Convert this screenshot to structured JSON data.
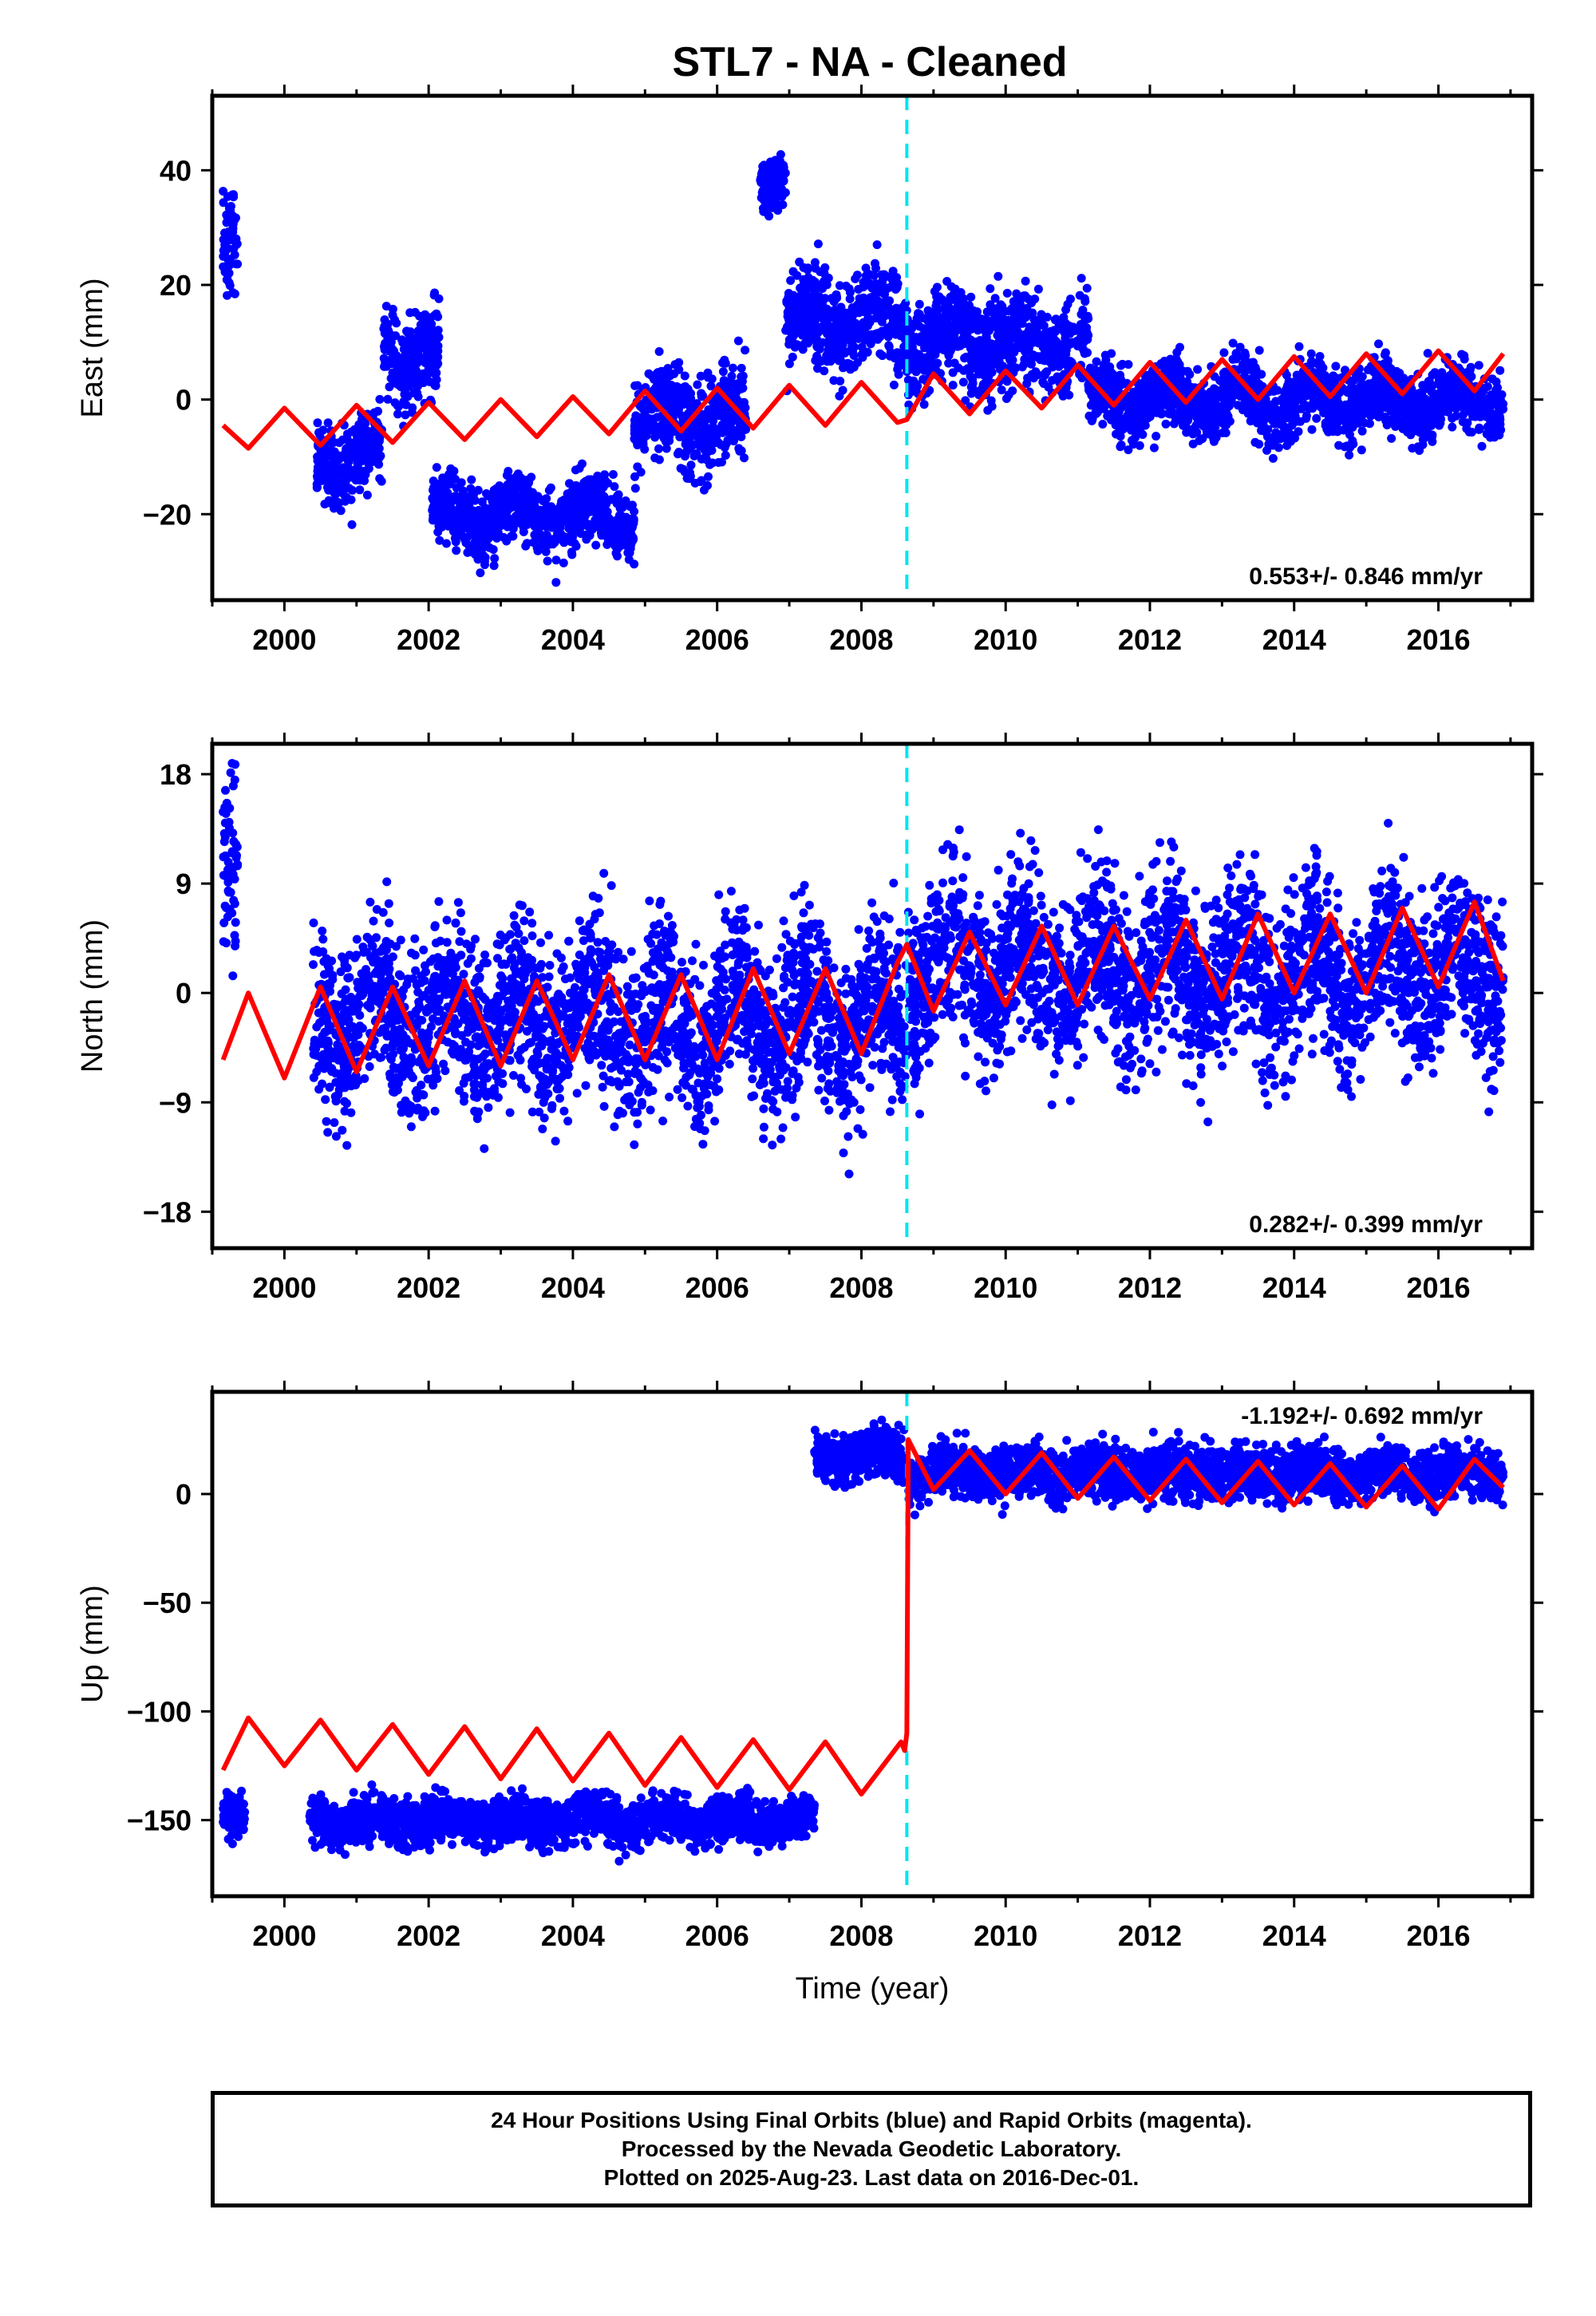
{
  "title": "STL7  - NA - Cleaned",
  "footer": {
    "line1": "24 Hour Positions Using Final Orbits (blue) and Rapid Orbits (magenta).",
    "line2": "Processed by the Nevada Geodetic Laboratory.",
    "line3": "Plotted on 2025-Aug-23. Last data on 2016-Dec-01."
  },
  "colors": {
    "points": "#0000ff",
    "model": "#ff0000",
    "offset_line": "#00e5ee"
  },
  "chart_data": [
    {
      "type": "scatter",
      "ylabel": "East (mm)",
      "xlabel": "",
      "xlim": [
        1999.0,
        2017.3
      ],
      "ylim": [
        -35,
        53
      ],
      "xticks": [
        2000,
        2002,
        2004,
        2006,
        2008,
        2010,
        2012,
        2014,
        2016
      ],
      "yticks": [
        -20,
        0,
        20,
        40
      ],
      "yticklabels": [
        "−20",
        "0",
        "20",
        "40"
      ],
      "rate_label": "0.553+/- 0.846 mm/yr",
      "offset_epoch": 2008.63,
      "data_segments": [
        {
          "x": [
            1999.15,
            1999.35
          ],
          "mean": 25,
          "spread": 9
        },
        {
          "x": [
            2000.45,
            2001.35
          ],
          "mean": -10,
          "spread": 6
        },
        {
          "x": [
            2001.35,
            2002.15
          ],
          "mean": 8,
          "spread": 7
        },
        {
          "x": [
            2002.05,
            2004.85
          ],
          "mean": -20,
          "spread": 5
        },
        {
          "x": [
            2004.85,
            2006.4
          ],
          "mean": -3,
          "spread": 7
        },
        {
          "x": [
            2006.6,
            2006.95
          ],
          "mean": 40,
          "spread": 4
        },
        {
          "x": [
            2006.95,
            2008.65
          ],
          "mean": 14,
          "spread": 7
        },
        {
          "x": [
            2008.65,
            2011.15
          ],
          "mean": 10,
          "spread": 7
        },
        {
          "x": [
            2011.15,
            2016.9
          ],
          "mean": 0,
          "spread": 5
        }
      ],
      "model_series": {
        "name": "model",
        "x": [
          1999.15,
          1999.5,
          2000.0,
          2000.5,
          2001.0,
          2001.5,
          2002.0,
          2002.5,
          2003.0,
          2003.5,
          2004.0,
          2004.5,
          2005.0,
          2005.5,
          2006.0,
          2006.5,
          2007.0,
          2007.5,
          2008.0,
          2008.5,
          2008.63,
          2009.0,
          2009.5,
          2010.0,
          2010.5,
          2011.0,
          2011.5,
          2012.0,
          2012.5,
          2013.0,
          2013.5,
          2014.0,
          2014.5,
          2015.0,
          2015.5,
          2016.0,
          2016.5,
          2016.9
        ],
        "y": [
          -4.5,
          -8.5,
          -1.5,
          -8.0,
          -1.0,
          -7.5,
          -0.5,
          -7.0,
          0.0,
          -6.5,
          0.5,
          -6.0,
          1.5,
          -5.5,
          2.0,
          -5.0,
          2.5,
          -4.5,
          3.0,
          -4.0,
          -3.5,
          4.5,
          -2.5,
          5.0,
          -1.5,
          6.0,
          -1.0,
          6.5,
          -0.5,
          7.0,
          0.0,
          7.5,
          0.5,
          8.0,
          1.0,
          8.5,
          1.5,
          8.0
        ]
      }
    },
    {
      "type": "scatter",
      "ylabel": "North (mm)",
      "xlabel": "",
      "xlim": [
        1999.0,
        2017.3
      ],
      "ylim": [
        -21,
        20.5
      ],
      "xticks": [
        2000,
        2002,
        2004,
        2006,
        2008,
        2010,
        2012,
        2014,
        2016
      ],
      "yticks": [
        -18,
        -9,
        0,
        9,
        18
      ],
      "yticklabels": [
        "−18",
        "−9",
        "0",
        "9",
        "18"
      ],
      "rate_label": "0.282+/- 0.399 mm/yr",
      "offset_epoch": 2008.63,
      "data_segments": [
        {
          "x": [
            1999.15,
            1999.35
          ],
          "mean": 8,
          "spread": 6
        },
        {
          "x": [
            2000.4,
            2008.62
          ],
          "mean": -2,
          "spread": 6
        },
        {
          "x": [
            2008.65,
            2016.9
          ],
          "mean": 2,
          "spread": 6
        }
      ],
      "model_series": {
        "name": "model",
        "x": [
          1999.15,
          1999.5,
          2000.0,
          2000.5,
          2001.0,
          2001.5,
          2002.0,
          2002.5,
          2003.0,
          2003.5,
          2004.0,
          2004.5,
          2005.0,
          2005.5,
          2006.0,
          2006.5,
          2007.0,
          2007.5,
          2008.0,
          2008.5,
          2008.63,
          2009.0,
          2009.5,
          2010.0,
          2010.5,
          2011.0,
          2011.5,
          2012.0,
          2012.5,
          2013.0,
          2013.5,
          2014.0,
          2014.5,
          2015.0,
          2015.5,
          2016.0,
          2016.5,
          2016.9
        ],
        "y": [
          -5.5,
          0.0,
          -7.0,
          0.5,
          -6.5,
          0.5,
          -6.0,
          1.0,
          -6.0,
          1.0,
          -5.5,
          1.5,
          -5.5,
          1.5,
          -5.5,
          2.0,
          -5.0,
          2.0,
          -5.0,
          2.5,
          4.0,
          -1.5,
          5.0,
          -1.0,
          5.5,
          -1.0,
          5.5,
          -0.5,
          6.0,
          -0.5,
          6.5,
          0.0,
          6.5,
          0.0,
          7.0,
          0.5,
          7.5,
          1.0
        ]
      }
    },
    {
      "type": "scatter",
      "ylabel": "Up (mm)",
      "xlabel": "Time (year)",
      "xlim": [
        1999.0,
        2017.3
      ],
      "ylim": [
        -185,
        47
      ],
      "xticks": [
        2000,
        2002,
        2004,
        2006,
        2008,
        2010,
        2012,
        2014,
        2016
      ],
      "yticks": [
        -150,
        -100,
        -50,
        0
      ],
      "yticklabels": [
        "−150",
        "−100",
        "−50",
        "0"
      ],
      "rate_label": "-1.192+/- 0.692 mm/yr",
      "offset_epoch": 2008.63,
      "data_segments": [
        {
          "x": [
            1999.15,
            1999.45
          ],
          "mean": -150,
          "spread": 8
        },
        {
          "x": [
            2000.35,
            2007.35
          ],
          "mean": -150,
          "spread": 9
        },
        {
          "x": [
            2007.35,
            2008.6
          ],
          "mean": 18,
          "spread": 9
        },
        {
          "x": [
            2008.65,
            2016.9
          ],
          "mean": 10,
          "spread": 10
        }
      ],
      "model_series": {
        "name": "model",
        "x": [
          1999.15,
          1999.5,
          2000.0,
          2000.5,
          2001.0,
          2001.5,
          2002.0,
          2002.5,
          2003.0,
          2003.5,
          2004.0,
          2004.5,
          2005.0,
          2005.5,
          2006.0,
          2006.5,
          2007.0,
          2007.5,
          2008.0,
          2008.55,
          2008.6,
          2008.63,
          2008.65,
          2009.0,
          2009.5,
          2010.0,
          2010.5,
          2011.0,
          2011.5,
          2012.0,
          2012.5,
          2013.0,
          2013.5,
          2014.0,
          2014.5,
          2015.0,
          2015.5,
          2016.0,
          2016.5,
          2016.9
        ],
        "y": [
          -127,
          -103,
          -125,
          -104,
          -127,
          -106,
          -129,
          -107,
          -131,
          -108,
          -132,
          -110,
          -134,
          -112,
          -135,
          -113,
          -136,
          -114,
          -138,
          -114,
          -118,
          -110,
          25,
          2,
          20,
          0,
          19,
          -2,
          17,
          -3,
          16,
          -4,
          15,
          -5,
          14,
          -6,
          13,
          -7,
          16,
          3
        ]
      }
    }
  ]
}
